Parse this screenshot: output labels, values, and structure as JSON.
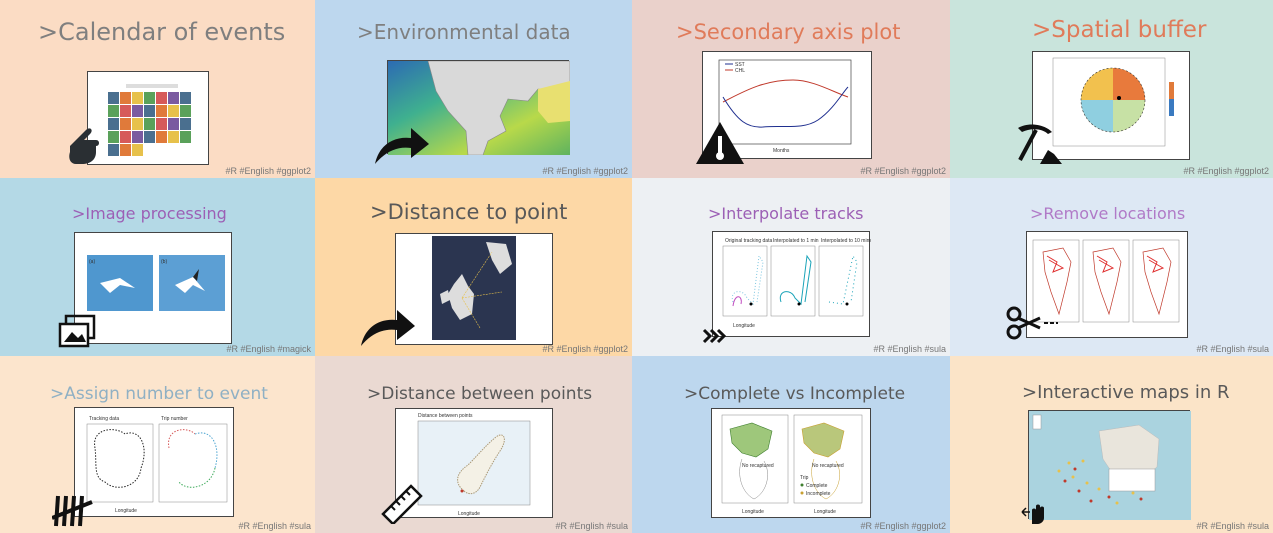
{
  "tiles": [
    {
      "title": ">Calendar of events",
      "tags": "#R #English #ggplot2",
      "bg": "#fbdcc4",
      "title_color": "#7f7f7f"
    },
    {
      "title": ">Environmental data",
      "tags": "#R #English #ggplot2",
      "bg": "#bdd7ee",
      "title_color": "#7f7f7f"
    },
    {
      "title": ">Secondary axis plot",
      "tags": "#R #English #ggplot2",
      "bg": "#ead1cb",
      "title_color": "#e07b5a"
    },
    {
      "title": ">Spatial buffer",
      "tags": "#R #English #ggplot2",
      "bg": "#c9e4dc",
      "title_color": "#e07b5a"
    },
    {
      "title": ">Image processing",
      "tags": "#R #English #magick",
      "bg": "#b4d9e6",
      "title_color": "#9c5fb5"
    },
    {
      "title": ">Distance to point",
      "tags": "#R #English #ggplot2",
      "bg": "#fdd8a6",
      "title_color": "#595959"
    },
    {
      "title": ">Interpolate tracks",
      "tags": "#R #English #sula",
      "bg": "#edf0f3",
      "title_color": "#9c5fb5"
    },
    {
      "title": ">Remove locations",
      "tags": "#R #English #sula",
      "bg": "#dde8f4",
      "title_color": "#b07ac7"
    },
    {
      "title": ">Assign number to event",
      "tags": "#R #English #sula",
      "bg": "#fce5cd",
      "title_color": "#8fb0c4"
    },
    {
      "title": ">Distance between points",
      "tags": "#R #English #sula",
      "bg": "#ead9d2",
      "title_color": "#595959"
    },
    {
      "title": ">Complete vs Incomplete",
      "tags": "#R #English #ggplot2",
      "bg": "#bdd7ee",
      "title_color": "#595959"
    },
    {
      "title": ">Interactive maps in R",
      "tags": "#R #English #sula",
      "bg": "#fbe4c8",
      "title_color": "#595959"
    }
  ],
  "thumbs": {
    "secondary_axis": {
      "legend_sst": "SST",
      "legend_chl": "CHL",
      "xlabel": "Months"
    },
    "image_processing": {
      "label_a": "(a)",
      "label_b": "(b)"
    },
    "interpolate": {
      "panel1": "Original tracking data",
      "panel2": "Interpolated to 1 min",
      "panel3": "Interpolated to 10 mins",
      "ylabel": "Latitude",
      "xlabel": "Longitude"
    },
    "assign": {
      "panel1": "Tracking data",
      "panel2": "Trip number",
      "xlabel": "Longitude"
    },
    "dist_between": {
      "title": "Distance between points",
      "xlabel": "Longitude",
      "ylabel": "Latitude"
    },
    "complete": {
      "no_recaptured": "No recaptured",
      "legend_title": "Trip",
      "legend_complete": "Complete",
      "legend_incomplete": "Incomplete",
      "xlabel": "Longitude",
      "ylabel": "Latitude"
    }
  }
}
